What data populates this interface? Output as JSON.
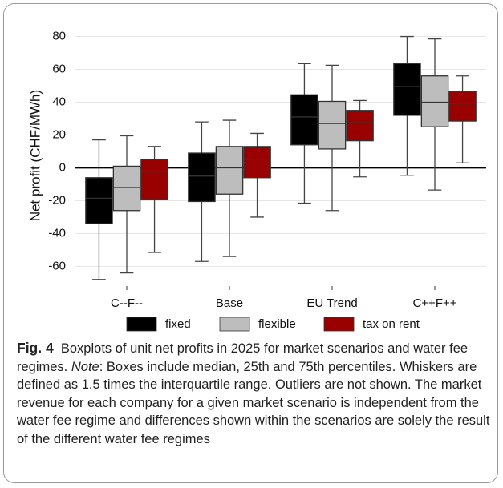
{
  "chart_data": {
    "type": "boxplot",
    "y_label": "Net profit (CHF/MWh)",
    "categories": [
      "C--F--",
      "Base",
      "EU Trend",
      "C++F++"
    ],
    "ylim": [
      -72,
      91
    ],
    "yticks": [
      -60,
      -40,
      -20,
      0,
      20,
      40,
      60,
      80
    ],
    "grid": true,
    "zero_line": true,
    "series": [
      {
        "name": "fixed",
        "color": "#000000",
        "boxes": [
          {
            "low": -68,
            "q1": -34,
            "median": -18.5,
            "q3": -6,
            "high": 17
          },
          {
            "low": -57,
            "q1": -20.5,
            "median": -5,
            "q3": 9,
            "high": 28
          },
          {
            "low": -21.5,
            "q1": 14,
            "median": 31,
            "q3": 44.5,
            "high": 63.5
          },
          {
            "low": -4.5,
            "q1": 32,
            "median": 49.5,
            "q3": 63.5,
            "high": 80
          }
        ]
      },
      {
        "name": "flexible",
        "color": "#bdbdbd",
        "boxes": [
          {
            "low": -64,
            "q1": -26,
            "median": -12,
            "q3": 1,
            "high": 19.5
          },
          {
            "low": -54,
            "q1": -16,
            "median": 0,
            "q3": 13,
            "high": 29
          },
          {
            "low": -26,
            "q1": 11.5,
            "median": 27,
            "q3": 40.5,
            "high": 62.5
          },
          {
            "low": -13.5,
            "q1": 25,
            "median": 40,
            "q3": 56,
            "high": 78.5
          }
        ]
      },
      {
        "name": "tax on rent",
        "color": "#990000",
        "boxes": [
          {
            "low": -51.5,
            "q1": -19,
            "median": -2.5,
            "q3": 5,
            "high": 13
          },
          {
            "low": -30,
            "q1": -6,
            "median": 5,
            "q3": 13,
            "high": 21
          },
          {
            "low": -5.5,
            "q1": 16.5,
            "median": 27.5,
            "q3": 35,
            "high": 41
          },
          {
            "low": 3,
            "q1": 28.5,
            "median": 39,
            "q3": 46.5,
            "high": 56
          }
        ]
      }
    ]
  },
  "caption": {
    "label": "Fig. 4",
    "text": "Boxplots of unit net profits in 2025 for market scenarios and water fee regimes.",
    "note": "Note",
    "body": ": Boxes include median, 25th and 75th percentiles. Whiskers are defined as 1.5 times the interquartile range. Outliers are not shown. The market revenue for each company for a given market scenario is independent from the water fee regime and differences shown within the scenarios are solely the result of the different water fee regimes"
  }
}
